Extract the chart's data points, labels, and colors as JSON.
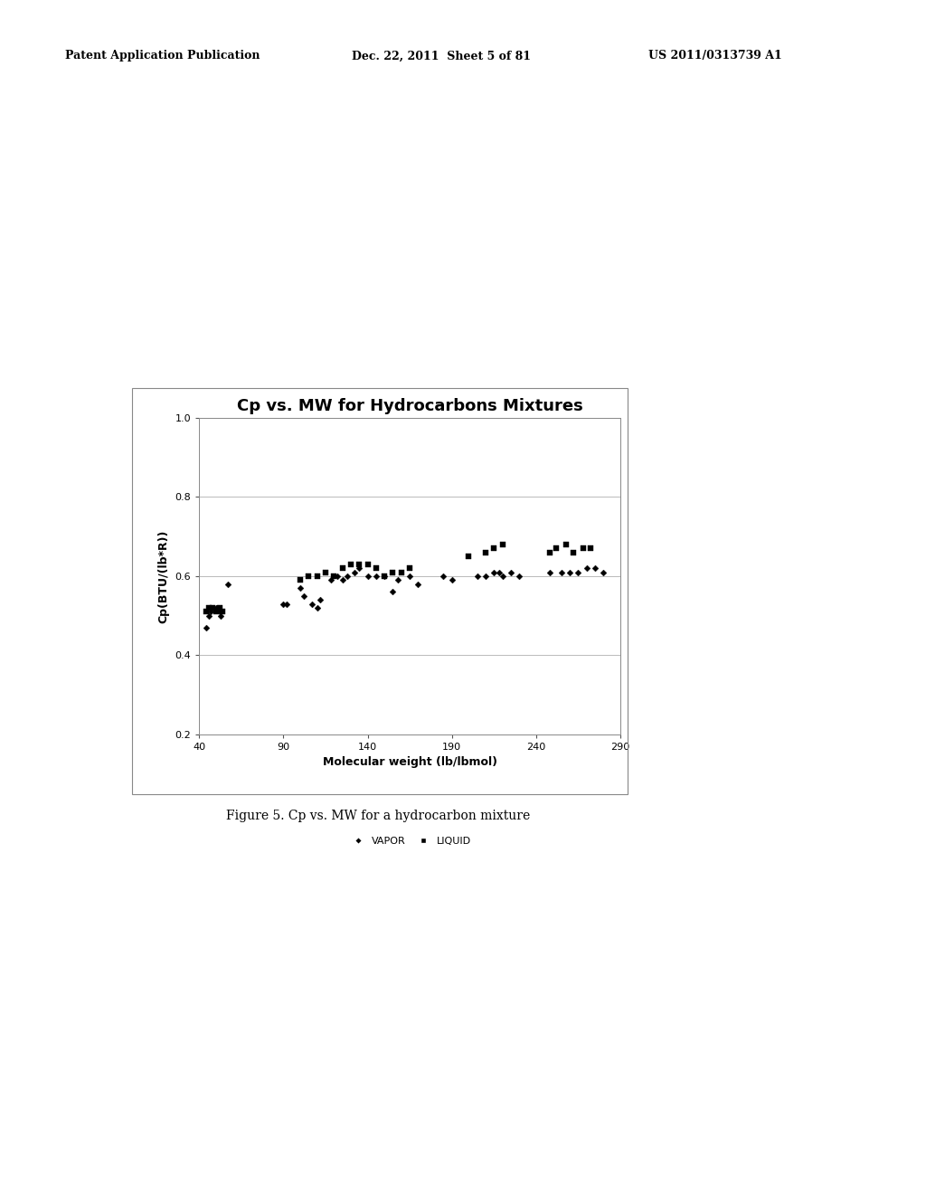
{
  "title": "Cp vs. MW for Hydrocarbons Mixtures",
  "xlabel": "Molecular weight (lb/lbmol)",
  "ylabel": "Cp(BTU/(lb*R))",
  "xlim": [
    40,
    290
  ],
  "ylim": [
    0.2,
    1.0
  ],
  "xticks": [
    40,
    90,
    140,
    190,
    240,
    290
  ],
  "yticks": [
    0.2,
    0.4,
    0.6,
    0.8,
    1.0
  ],
  "vapor_x": [
    44,
    46,
    47,
    50,
    51,
    52,
    53,
    57,
    90,
    92,
    100,
    102,
    107,
    110,
    112,
    118,
    122,
    125,
    128,
    132,
    135,
    140,
    145,
    150,
    155,
    158,
    165,
    170,
    185,
    190,
    205,
    210,
    215,
    218,
    220,
    225,
    230,
    248,
    255,
    260,
    265,
    270,
    275,
    280
  ],
  "vapor_y": [
    0.47,
    0.5,
    0.51,
    0.52,
    0.52,
    0.51,
    0.5,
    0.58,
    0.53,
    0.53,
    0.57,
    0.55,
    0.53,
    0.52,
    0.54,
    0.59,
    0.6,
    0.59,
    0.6,
    0.61,
    0.62,
    0.6,
    0.6,
    0.6,
    0.56,
    0.59,
    0.6,
    0.58,
    0.6,
    0.59,
    0.6,
    0.6,
    0.61,
    0.61,
    0.6,
    0.61,
    0.6,
    0.61,
    0.61,
    0.61,
    0.61,
    0.62,
    0.62,
    0.61
  ],
  "liquid_x": [
    44,
    46,
    48,
    50,
    52,
    54,
    100,
    105,
    110,
    115,
    120,
    125,
    130,
    135,
    140,
    145,
    150,
    155,
    160,
    165,
    200,
    210,
    215,
    220,
    248,
    252,
    258,
    262,
    268,
    272
  ],
  "liquid_y": [
    0.51,
    0.52,
    0.52,
    0.51,
    0.52,
    0.51,
    0.59,
    0.6,
    0.6,
    0.61,
    0.6,
    0.62,
    0.63,
    0.63,
    0.63,
    0.62,
    0.6,
    0.61,
    0.61,
    0.62,
    0.65,
    0.66,
    0.67,
    0.68,
    0.66,
    0.67,
    0.68,
    0.66,
    0.67,
    0.67
  ],
  "header_left": "Patent Application Publication",
  "header_mid": "Dec. 22, 2011  Sheet 5 of 81",
  "header_right": "US 2011/0313739 A1",
  "caption": "Figure 5. Cp vs. MW for a hydrocarbon mixture",
  "background_color": "#ffffff",
  "plot_bg_color": "#ffffff",
  "grid_color": "#b0b0b0",
  "data_color": "#000000",
  "title_fontsize": 13,
  "axis_label_fontsize": 9,
  "tick_fontsize": 8,
  "header_fontsize": 9,
  "caption_fontsize": 10,
  "legend_fontsize": 8
}
